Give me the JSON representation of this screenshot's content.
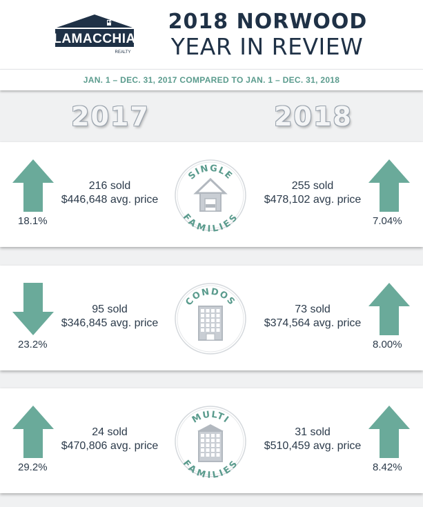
{
  "logo": {
    "name": "LAMACCHIA",
    "sub": "REALTY"
  },
  "title": {
    "line1": "2018 NORWOOD",
    "line2": "YEAR IN REVIEW"
  },
  "date_range": "JAN. 1  –  DEC. 31, 2017 COMPARED TO JAN. 1  –  DEC. 31, 2018",
  "years": {
    "left": "2017",
    "right": "2018"
  },
  "colors": {
    "accent": "#6aaa9a",
    "navy": "#1f3146",
    "badge_text": "#5a9b8d",
    "band": "#ffffff",
    "background": "#f0f1f2"
  },
  "categories": [
    {
      "badge_top": "SINGLE",
      "badge_bottom": "FAMILIES",
      "icon": "house-icon",
      "left": {
        "sold": "216 sold",
        "price": "$446,648 avg. price",
        "change": "18.1%",
        "direction": "up"
      },
      "right": {
        "sold": "255 sold",
        "price": "$478,102 avg. price",
        "change": "7.04%",
        "direction": "up"
      }
    },
    {
      "badge_top": "CONDOS",
      "badge_bottom": "",
      "icon": "condo-building-icon",
      "left": {
        "sold": "95 sold",
        "price": "$346,845 avg. price",
        "change": "23.2%",
        "direction": "down"
      },
      "right": {
        "sold": "73 sold",
        "price": "$374,564 avg. price",
        "change": "8.00%",
        "direction": "up"
      }
    },
    {
      "badge_top": "MULTI",
      "badge_bottom": "FAMILIES",
      "icon": "multi-family-building-icon",
      "left": {
        "sold": "24 sold",
        "price": "$470,806 avg. price",
        "change": "29.2%",
        "direction": "up"
      },
      "right": {
        "sold": "31 sold",
        "price": "$510,459 avg. price",
        "change": "8.42%",
        "direction": "up"
      }
    }
  ]
}
